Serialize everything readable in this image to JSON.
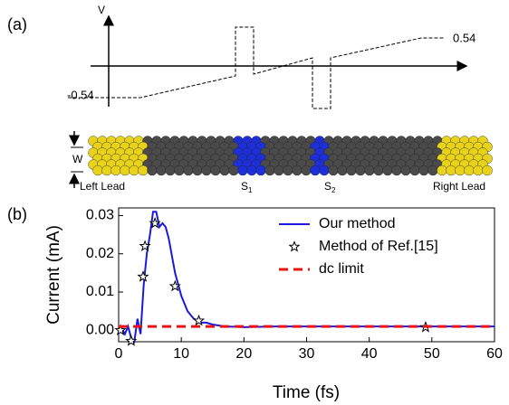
{
  "panel_labels": [
    "(a)",
    "(b)"
  ],
  "diagram": {
    "axis_label": "V",
    "voltage_high": 0.54,
    "voltage_low": -0.54,
    "width_label": "W",
    "leads": [
      "Left Lead",
      "Right Lead"
    ],
    "sites": [
      {
        "base": "S",
        "sub": "1"
      },
      {
        "base": "S",
        "sub": "2"
      }
    ]
  },
  "chart_data": {
    "type": "line",
    "xlabel": "Time (fs)",
    "ylabel": "Current (mA)",
    "xlim": [
      0,
      60
    ],
    "ylim": [
      -0.003,
      0.032
    ],
    "xticks": [
      0,
      10,
      20,
      30,
      40,
      50,
      60
    ],
    "yticks": [
      {
        "value": 0,
        "label": "0.00"
      },
      0.01,
      0.02,
      0.03
    ],
    "legend": "upper right",
    "series": [
      {
        "name": "Our method",
        "color": "#1a1adc",
        "style": "line",
        "x": [
          0,
          0.5,
          1,
          1.5,
          2,
          2.5,
          3,
          3.5,
          4,
          4.5,
          5,
          5.5,
          6,
          6.5,
          7,
          7.5,
          8,
          9,
          10,
          11,
          12,
          13,
          14,
          15,
          17,
          20,
          25,
          30,
          40,
          50,
          60
        ],
        "values": [
          0,
          0.0005,
          -0.001,
          0.001,
          -0.002,
          -0.003,
          0.003,
          -0.001,
          0.012,
          0.02,
          0.025,
          0.031,
          0.031,
          0.027,
          0.028,
          0.027,
          0.024,
          0.015,
          0.009,
          0.005,
          0.003,
          0.002,
          0.002,
          0.0015,
          0.001,
          0.0008,
          0.001,
          0.001,
          0.001,
          0.001,
          0.001
        ]
      },
      {
        "name": "Method of Ref.[15]",
        "color": "#000000",
        "style": "star",
        "x": [
          0.3,
          2,
          3.9,
          4.2,
          5.8,
          9,
          12.8,
          49
        ],
        "values": [
          0,
          -0.0028,
          0.014,
          0.022,
          0.028,
          0.0115,
          0.0025,
          0.0008
        ]
      },
      {
        "name": "dc limit",
        "color": "#ee1111",
        "style": "dashed",
        "x": [
          0,
          60
        ],
        "values": [
          0.001,
          0.001
        ]
      }
    ]
  }
}
